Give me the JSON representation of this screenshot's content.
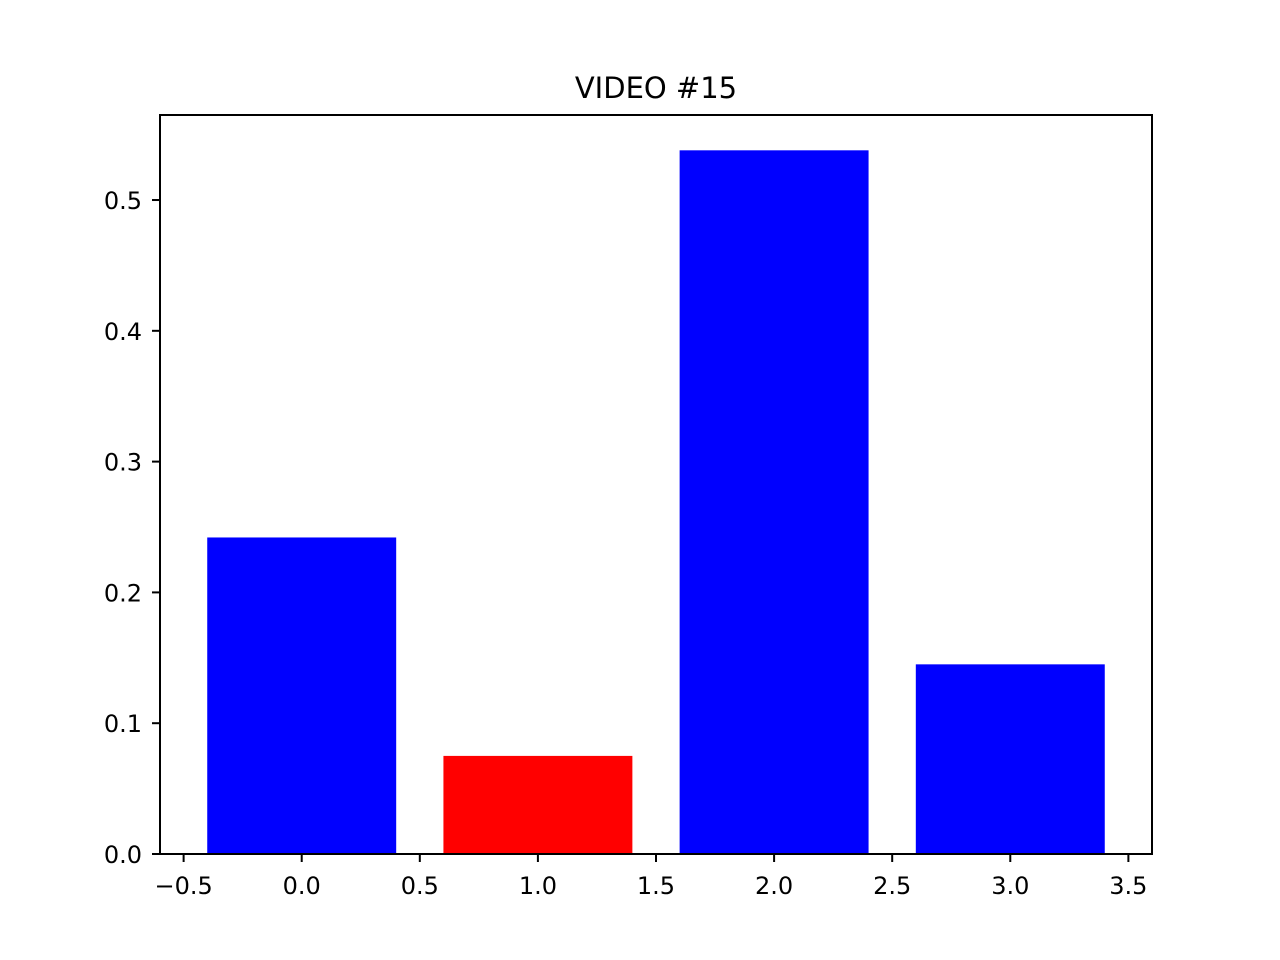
{
  "chart_data": {
    "type": "bar",
    "title": "VIDEO #15",
    "xlabel": "",
    "ylabel": "",
    "x": [
      0,
      1,
      2,
      3
    ],
    "values": [
      0.242,
      0.075,
      0.538,
      0.145
    ],
    "colors": [
      "#0000ff",
      "#ff0000",
      "#0000ff",
      "#0000ff"
    ],
    "bar_width": 0.8,
    "xlim": [
      -0.6,
      3.6
    ],
    "ylim": [
      0,
      0.565
    ],
    "x_ticks": [
      -0.5,
      0.0,
      0.5,
      1.0,
      1.5,
      2.0,
      2.5,
      3.0,
      3.5
    ],
    "x_tick_labels": [
      "−0.5",
      "0.0",
      "0.5",
      "1.0",
      "1.5",
      "2.0",
      "2.5",
      "3.0",
      "3.5"
    ],
    "y_ticks": [
      0.0,
      0.1,
      0.2,
      0.3,
      0.4,
      0.5
    ],
    "y_tick_labels": [
      "0.0",
      "0.1",
      "0.2",
      "0.3",
      "0.4",
      "0.5"
    ],
    "grid": false,
    "legend": "none"
  }
}
